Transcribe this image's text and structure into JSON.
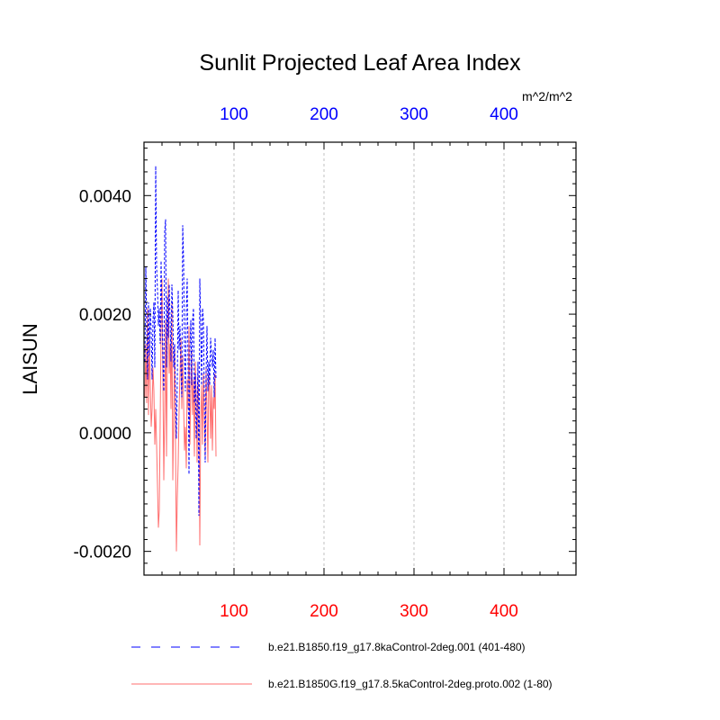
{
  "chart_data": {
    "type": "line",
    "title": "Sunlit Projected Leaf Area Index",
    "ylabel": "LAISUN",
    "units": "m^2/m^2",
    "xlim": [
      0,
      480
    ],
    "ylim": [
      -0.0024,
      0.0049
    ],
    "yticks": [
      -0.002,
      0.0,
      0.002,
      0.004
    ],
    "ytick_labels": [
      "-0.0020",
      "0.0000",
      "0.0020",
      "0.0040"
    ],
    "bottom_xticks": [
      100,
      200,
      300,
      400
    ],
    "bottom_xtick_labels": [
      "100",
      "200",
      "300",
      "400"
    ],
    "top_xticks": [
      100,
      200,
      300,
      400
    ],
    "top_xtick_labels": [
      "100",
      "200",
      "300",
      "400"
    ],
    "grid": "vertical dashed at major x ticks",
    "legend_position": "bottom",
    "series": [
      {
        "name": "b.e21.B1850.f19_g17.8kaControl-2deg.001 (401-480)",
        "color": "#0000ff",
        "dash": "dashed",
        "axis": "top",
        "x": [
          1,
          2,
          3,
          4,
          5,
          6,
          7,
          8,
          9,
          10,
          11,
          12,
          13,
          14,
          15,
          16,
          17,
          18,
          19,
          20,
          21,
          22,
          23,
          24,
          25,
          26,
          27,
          28,
          29,
          30,
          31,
          32,
          33,
          34,
          35,
          36,
          37,
          38,
          39,
          40,
          41,
          42,
          43,
          44,
          45,
          46,
          47,
          48,
          49,
          50,
          51,
          52,
          53,
          54,
          55,
          56,
          57,
          58,
          59,
          60,
          61,
          62,
          63,
          64,
          65,
          66,
          67,
          68,
          69,
          70,
          71,
          72,
          73,
          74,
          75,
          76,
          77,
          78,
          79,
          80
        ],
        "values": [
          0.0012,
          0.0028,
          0.0018,
          0.0009,
          0.0022,
          0.0013,
          0.0021,
          0.0017,
          0.0009,
          0.0019,
          0.0022,
          0.0011,
          0.0045,
          0.0028,
          0.0024,
          0.0018,
          0.0021,
          0.0015,
          0.0029,
          0.002,
          0.0012,
          0.0007,
          0.0034,
          0.0036,
          0.0011,
          0.0023,
          0.0016,
          0.0025,
          0.0019,
          0.0012,
          0.0025,
          0.002,
          0.0011,
          0.0015,
          0.0006,
          -0.0001,
          0.0009,
          0.0024,
          0.0014,
          0.0018,
          0.0011,
          0.0006,
          0.0035,
          0.0029,
          0.0013,
          0.0007,
          0.0021,
          0.0026,
          0.0011,
          -0.0007,
          0.0014,
          0.0019,
          0.0008,
          0.0019,
          0.0021,
          0.0005,
          0.001,
          -0.0001,
          0.0004,
          0.0012,
          -0.0014,
          0.0026,
          0.0018,
          0.0008,
          0.0021,
          0.0019,
          0.0006,
          -0.0005,
          0.001,
          0.0018,
          0.0007,
          0.0012,
          0.0008,
          0.0016,
          0.0013,
          0.0011,
          0.0014,
          0.0006,
          0.0016,
          0.0009
        ]
      },
      {
        "name": "b.e21.B1850G.f19_g17.8.5kaControl-2deg.proto.002 (1-80)",
        "color": "#ff6f6f",
        "dash": "solid",
        "axis": "bottom",
        "x": [
          1,
          2,
          3,
          4,
          5,
          6,
          7,
          8,
          9,
          10,
          11,
          12,
          13,
          14,
          15,
          16,
          17,
          18,
          19,
          20,
          21,
          22,
          23,
          24,
          25,
          26,
          27,
          28,
          29,
          30,
          31,
          32,
          33,
          34,
          35,
          36,
          37,
          38,
          39,
          40,
          41,
          42,
          43,
          44,
          45,
          46,
          47,
          48,
          49,
          50,
          51,
          52,
          53,
          54,
          55,
          56,
          57,
          58,
          59,
          60,
          61,
          62,
          63,
          64,
          65,
          66,
          67,
          68,
          69,
          70,
          71,
          72,
          73,
          74,
          75,
          76,
          77,
          78,
          79,
          80
        ],
        "values": [
          0.0006,
          0.0015,
          0.0005,
          0.0021,
          0.0003,
          0.0016,
          0.0008,
          0.0001,
          0.0004,
          0.0011,
          0.0007,
          -0.0002,
          0.0004,
          -0.0002,
          -0.0009,
          -0.0016,
          -0.0013,
          0.0002,
          0.0018,
          0.0026,
          0.0009,
          -0.0008,
          0.0004,
          0.0019,
          -0.0004,
          0.0015,
          0.0026,
          0.001,
          0.0015,
          0.0004,
          0.0022,
          -0.0008,
          0.0003,
          0.0015,
          -0.0002,
          -0.002,
          -0.0011,
          -0.0005,
          0.0004,
          0.001,
          0.0016,
          0.0004,
          0.0013,
          0.0005,
          -0.0003,
          0.0001,
          -0.0006,
          0.0009,
          0.0004,
          0.0018,
          -0.0002,
          0.0007,
          0.0014,
          0.0003,
          0.0009,
          -0.0004,
          0.0012,
          0.0006,
          -0.0005,
          0.001,
          0.0004,
          -0.0019,
          0.0002,
          0.0008,
          -0.0002,
          0.001,
          0.0003,
          -0.0004,
          0.0011,
          0.0004,
          -0.0005,
          0.001,
          0.0007,
          -0.0001,
          0.0008,
          -0.0003,
          0.0006,
          0.0004,
          0.001,
          -0.0004
        ]
      }
    ]
  },
  "colors": {
    "top_axis_labels": "#0000ff",
    "bottom_axis_labels": "#ff0000",
    "grid": "#b4b4b4"
  }
}
